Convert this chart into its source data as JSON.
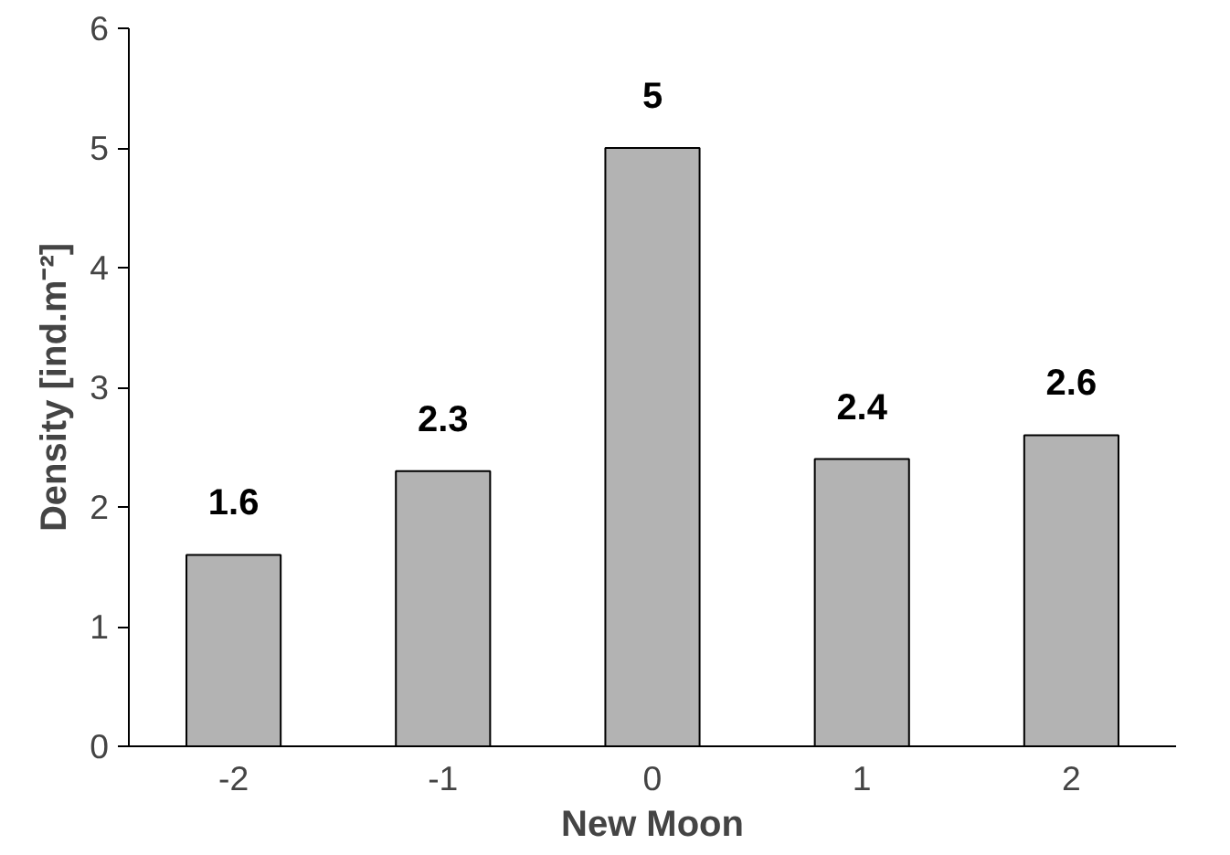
{
  "chart_data": {
    "type": "bar",
    "xlabel": "New Moon",
    "ylabel": "Density [ind.m⁻²]",
    "categories": [
      "-2",
      "-1",
      "0",
      "1",
      "2"
    ],
    "values": [
      1.6,
      2.3,
      5,
      2.4,
      2.6
    ],
    "color": "#b3b3b3",
    "ylim": [
      0,
      6
    ],
    "yticks": [
      0,
      1,
      2,
      3,
      4,
      5,
      6
    ],
    "data_labels": true,
    "grid": false
  }
}
